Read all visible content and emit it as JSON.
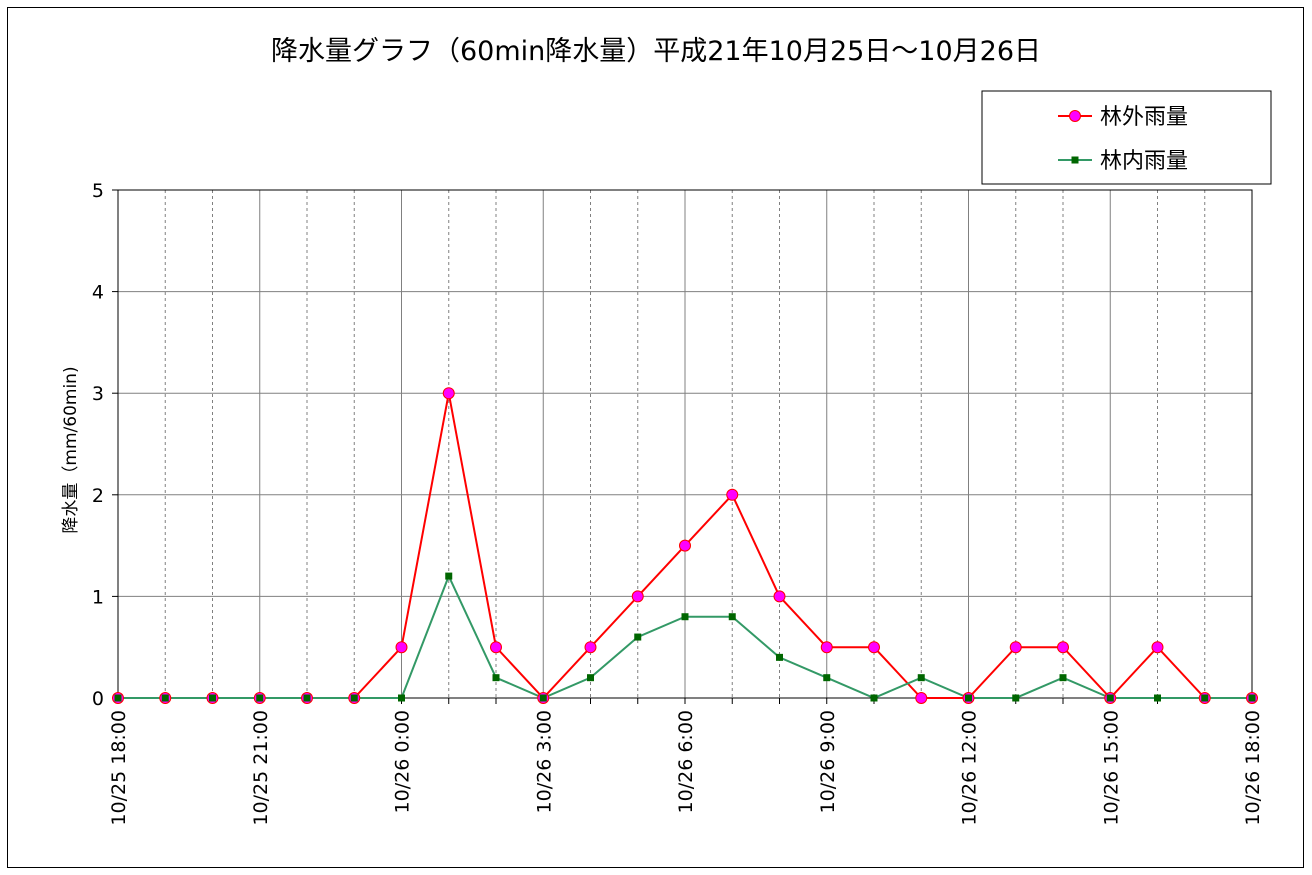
{
  "chart_data": {
    "type": "line",
    "title": "降水量グラフ（60min降水量）平成21年10月25日～10月26日",
    "ylabel": "降水量（mm/60min)",
    "xlabel": "",
    "ylim": [
      0,
      5
    ],
    "yticks": [
      "0",
      "1",
      "2",
      "3",
      "4",
      "5"
    ],
    "grid": true,
    "legend_position": "top-right",
    "x": [
      "10/25 18:00",
      "10/25 19:00",
      "10/25 20:00",
      "10/25 21:00",
      "10/25 22:00",
      "10/25 23:00",
      "10/26 0:00",
      "10/26 1:00",
      "10/26 2:00",
      "10/26 3:00",
      "10/26 4:00",
      "10/26 5:00",
      "10/26 6:00",
      "10/26 7:00",
      "10/26 8:00",
      "10/26 9:00",
      "10/26 10:00",
      "10/26 11:00",
      "10/26 12:00",
      "10/26 13:00",
      "10/26 14:00",
      "10/26 15:00",
      "10/26 16:00",
      "10/26 17:00",
      "10/26 18:00"
    ],
    "x_tick_labels": [
      "10/25 18:00",
      "",
      "",
      "10/25 21:00",
      "",
      "",
      "10/26 0:00",
      "",
      "",
      "10/26 3:00",
      "",
      "",
      "10/26 6:00",
      "",
      "",
      "10/26 9:00",
      "",
      "",
      "10/26 12:00",
      "",
      "",
      "10/26 15:00",
      "",
      "",
      "10/26 18:00"
    ],
    "series": [
      {
        "name": "林外雨量",
        "color": "#ff0000",
        "marker_color": "#ff00ff",
        "marker": "circle",
        "values": [
          0,
          0,
          0,
          0,
          0,
          0,
          0.5,
          3,
          0.5,
          0,
          0.5,
          1,
          1.5,
          2,
          1,
          0.5,
          0.5,
          0,
          0,
          0.5,
          0.5,
          0,
          0.5,
          0,
          0
        ]
      },
      {
        "name": "林内雨量",
        "color": "#339966",
        "marker_color": "#006600",
        "marker": "square",
        "values": [
          0,
          0,
          0,
          0,
          0,
          0,
          0,
          1.2,
          0.2,
          0,
          0.2,
          0.6,
          0.8,
          0.8,
          0.4,
          0.2,
          0,
          0.2,
          0,
          0,
          0.2,
          0,
          0,
          0,
          0
        ]
      }
    ]
  }
}
